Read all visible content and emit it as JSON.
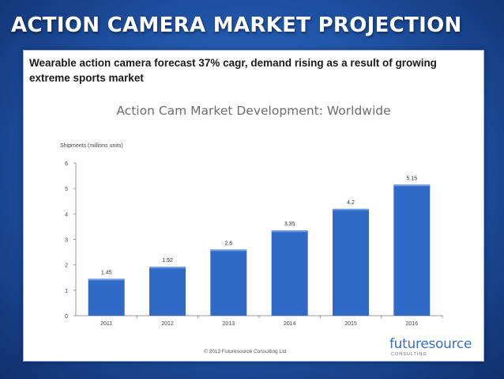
{
  "slide": {
    "title": "ACTION CAMERA MARKET PROJECTION",
    "subtitle": "Wearable action camera forecast 37% cagr, demand rising as a result of growing extreme sports market"
  },
  "chart_data": {
    "type": "bar",
    "title": "Action Cam Market Development: Worldwide",
    "ylabel": "Shipments (millions units)",
    "xlabel": "",
    "categories": [
      "2011",
      "2012",
      "2013",
      "2014",
      "2015",
      "2016"
    ],
    "values": [
      1.45,
      1.92,
      2.6,
      3.35,
      4.2,
      5.15
    ],
    "data_labels": [
      "1.45",
      "1.92",
      "2.6",
      "3.35",
      "4.2",
      "5.15"
    ],
    "ylim": [
      0,
      6
    ],
    "yticks": [
      "0",
      "1",
      "2",
      "3",
      "4",
      "5",
      "6"
    ],
    "grid": false,
    "bar_color": "#2f6ac7",
    "footer": "© 2012 Futuresource Consulting Ltd"
  },
  "logo": {
    "name": "futuresource",
    "sub": "CONSULTING"
  },
  "colors": {
    "title_text": "#ffffff",
    "background": "#2359ad",
    "chart_title": "#6d6d6d"
  }
}
